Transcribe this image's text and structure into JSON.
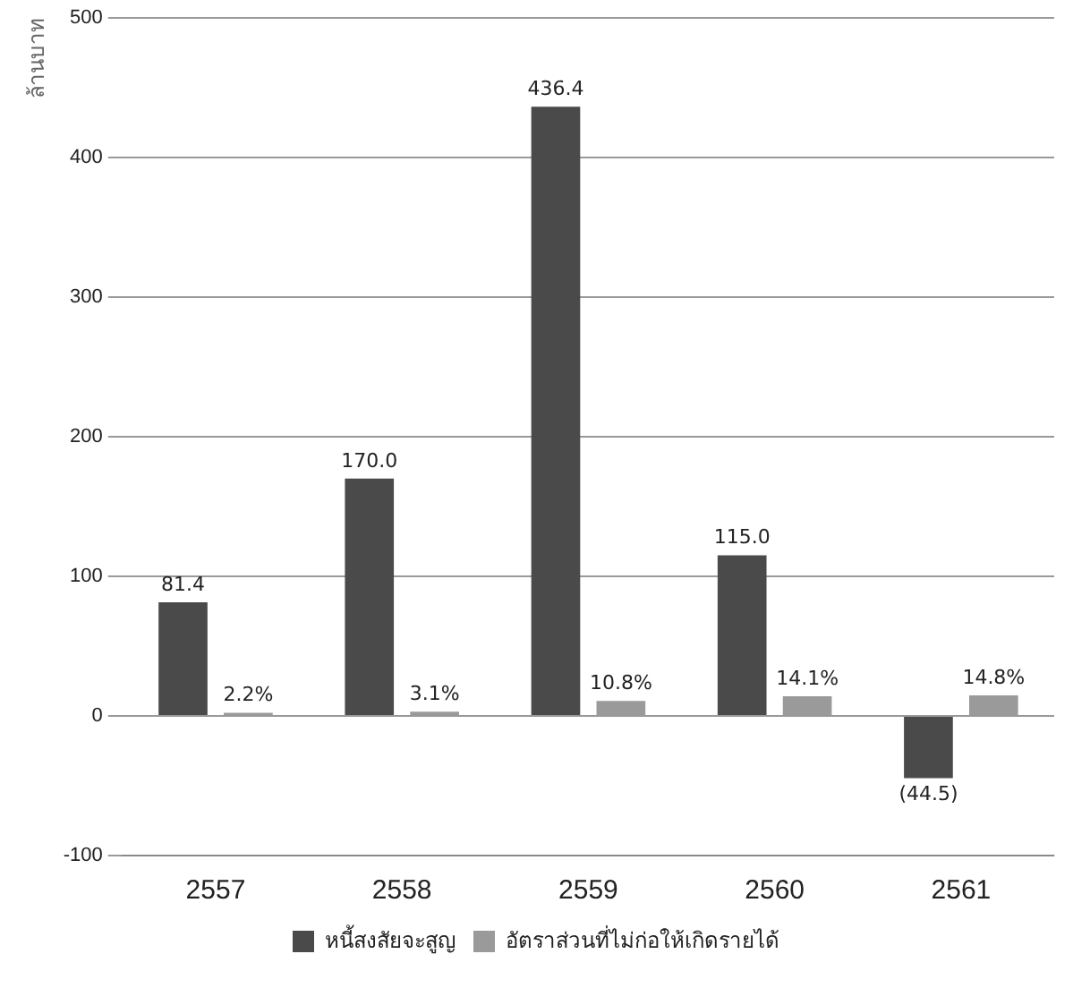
{
  "chart_data": {
    "type": "bar",
    "ylabel": "ล้านบาท",
    "categories": [
      "2557",
      "2558",
      "2559",
      "2560",
      "2561"
    ],
    "series": [
      {
        "name": "หนี้สงสัยจะสูญ",
        "color": "#4a4a4a",
        "values": [
          81.4,
          170.0,
          436.4,
          115.0,
          -44.5
        ],
        "value_labels": [
          "81.4",
          "170.0",
          "436.4",
          "115.0",
          "(44.5)"
        ]
      },
      {
        "name": "อัตราส่วนที่ไม่ก่อให้เกิดรายได้",
        "color": "#9a9a9a",
        "values": [
          2.2,
          3.1,
          10.8,
          14.1,
          14.8
        ],
        "value_labels": [
          "2.2%",
          "3.1%",
          "10.8%",
          "14.1%",
          "14.8%"
        ]
      }
    ],
    "ylim": [
      -100,
      500
    ],
    "yticks": [
      -100,
      0,
      100,
      200,
      300,
      400,
      500
    ],
    "grid": "y",
    "legend": "bottom"
  }
}
